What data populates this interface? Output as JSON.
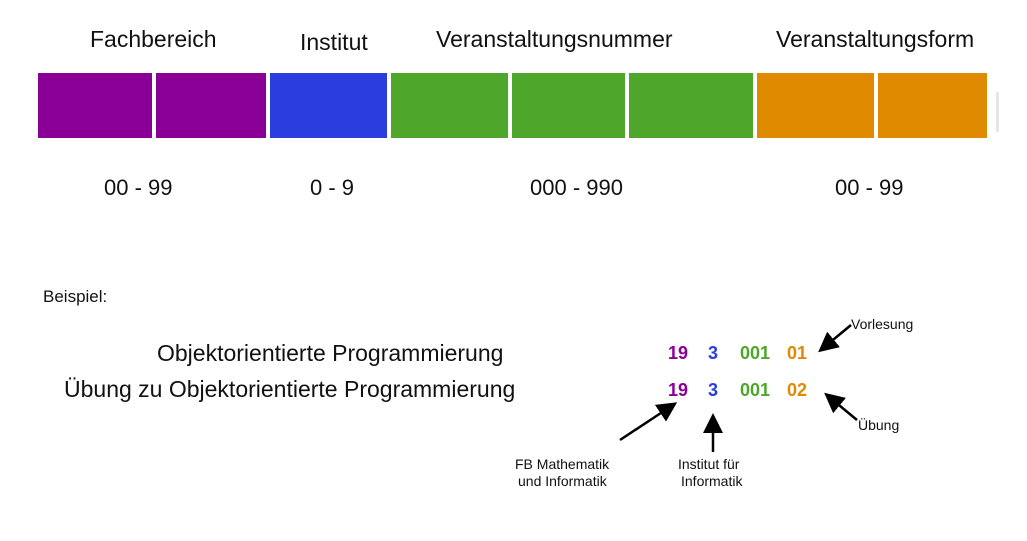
{
  "colors": {
    "fachbereich": "#8a0096",
    "institut": "#2a3ee0",
    "veranstaltungsnummer": "#4ea62a",
    "veranstaltungsform": "#e08a00"
  },
  "headers": {
    "fachbereich": "Fachbereich",
    "institut": "Institut",
    "veranstaltungsnummer": "Veranstaltungsnummer",
    "veranstaltungsform": "Veranstaltungsform"
  },
  "ranges": {
    "fachbereich": "00 - 99",
    "institut": "0 - 9",
    "veranstaltungsnummer": "000 - 990",
    "veranstaltungsform": "00 - 99"
  },
  "example": {
    "label": "Beispiel:",
    "rows": [
      {
        "title": "Objektorientierte Programmierung",
        "fb": "19",
        "inst": "3",
        "nr": "001",
        "form": "01"
      },
      {
        "title": "Übung zu Objektorientierte Programmierung",
        "fb": "19",
        "inst": "3",
        "nr": "001",
        "form": "02"
      }
    ],
    "notes": {
      "vorlesung": "Vorlesung",
      "uebung": "Übung",
      "fb_line1": "FB Mathematik",
      "fb_line2": "und Informatik",
      "inst_line1": "Institut für",
      "inst_line2": "Informatik"
    }
  }
}
